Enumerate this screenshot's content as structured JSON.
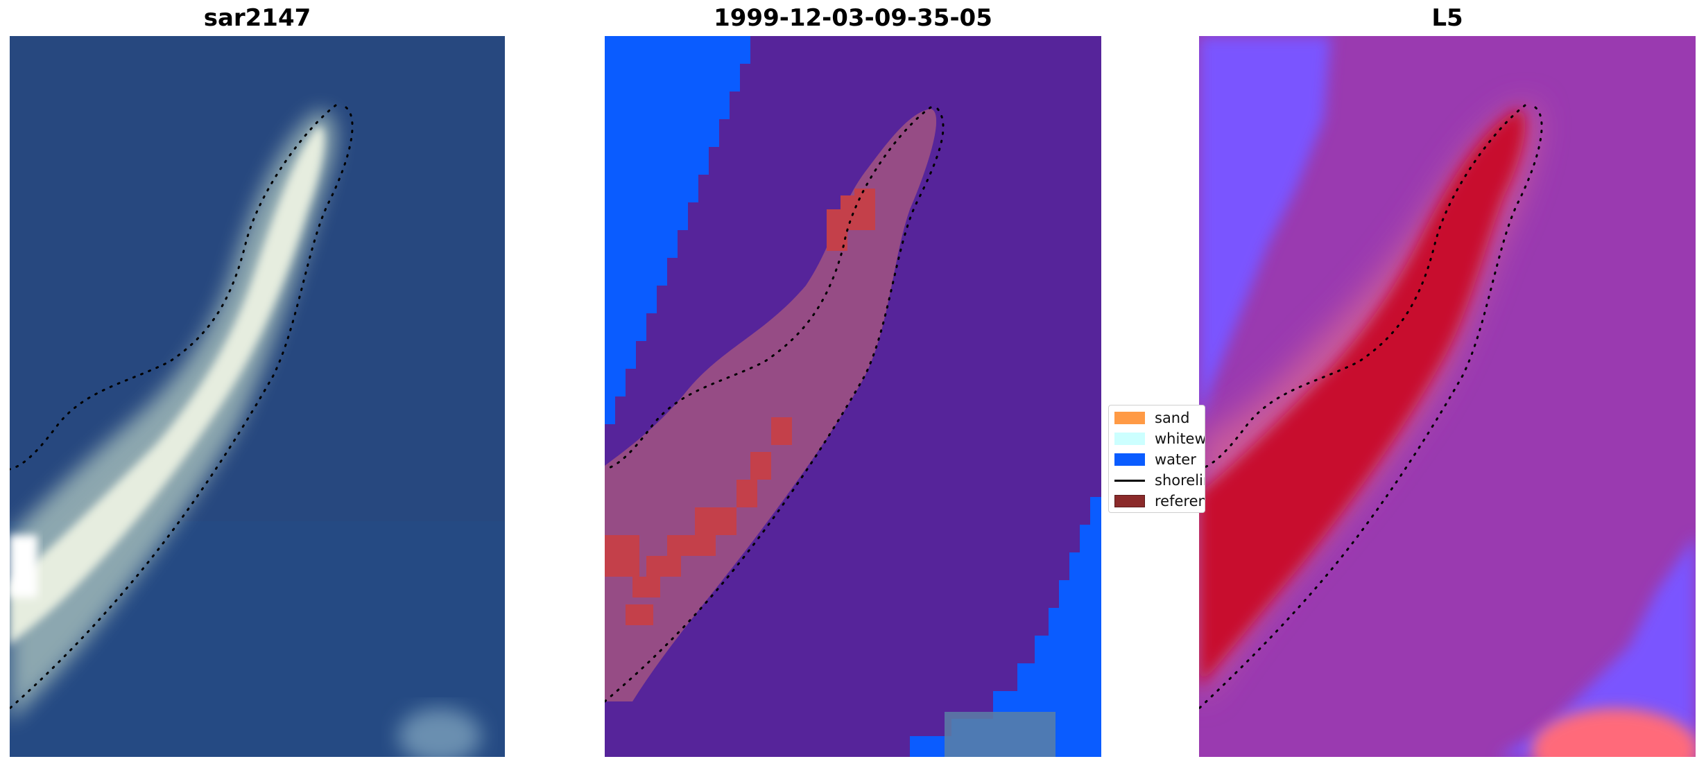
{
  "panels": [
    {
      "id": "rgb",
      "title": "sar2147"
    },
    {
      "id": "classified",
      "title": "1999-12-03-09-35-05"
    },
    {
      "id": "index",
      "title": "L5"
    }
  ],
  "legend": {
    "items": [
      {
        "label": "sand",
        "color": "#ff9a45",
        "kind": "patch"
      },
      {
        "label": "whitewater",
        "color": "#ccffff",
        "kind": "patch"
      },
      {
        "label": "water",
        "color": "#0a5cff",
        "kind": "patch"
      },
      {
        "label": "shoreline",
        "color": "#000000",
        "kind": "line"
      },
      {
        "label": "reference",
        "color": "#8b2a2a",
        "kind": "patch"
      }
    ]
  },
  "colors": {
    "ocean_rgb": "#27487f",
    "sand_rgb": "#e8ecdc",
    "water_class": "#0a5cff",
    "other_class": "#56249a",
    "index_low": "#7a55ff",
    "index_mid": "#9a3ab0",
    "index_high": "#c8102e"
  }
}
